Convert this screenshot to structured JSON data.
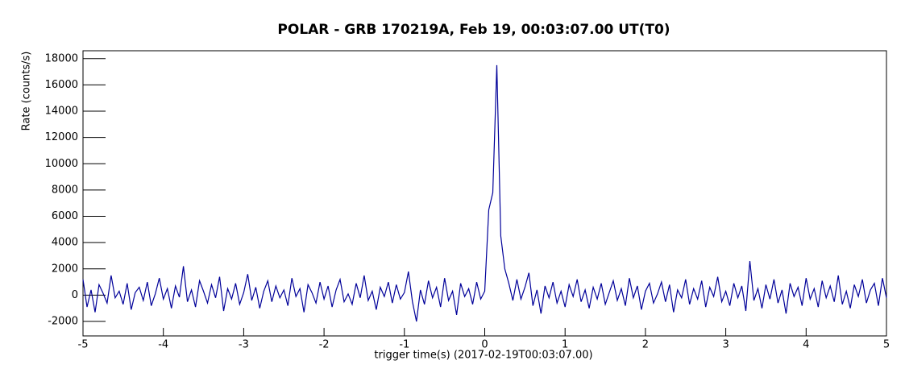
{
  "chart_data": {
    "type": "line",
    "title": "POLAR - GRB 170219A, Feb 19, 00:03:07.00  UT(T0)",
    "x_label": "trigger time(s) (2017-02-19T00:03:07.00)",
    "y_label": "Rate (counts/s)",
    "xlim": [
      -5,
      5
    ],
    "xticks": [
      -5,
      -4,
      -3,
      -2,
      -1,
      0,
      1,
      2,
      3,
      4,
      5
    ],
    "ylim": [
      -3100,
      18600
    ],
    "yticks": [
      -2000,
      0,
      2000,
      4000,
      6000,
      8000,
      10000,
      12000,
      14000,
      16000,
      18000
    ],
    "series": [
      {
        "color": "#000099",
        "x": [
          -5,
          -4.95,
          -4.9,
          -4.85,
          -4.8,
          -4.75,
          -4.7,
          -4.65,
          -4.6,
          -4.55,
          -4.5,
          -4.45,
          -4.4,
          -4.35,
          -4.3,
          -4.25,
          -4.2,
          -4.15,
          -4.1,
          -4.05,
          -4,
          -3.95,
          -3.9,
          -3.85,
          -3.8,
          -3.75,
          -3.7,
          -3.65,
          -3.6,
          -3.55,
          -3.5,
          -3.45,
          -3.4,
          -3.35,
          -3.3,
          -3.25,
          -3.2,
          -3.15,
          -3.1,
          -3.05,
          -3,
          -2.95,
          -2.9,
          -2.85,
          -2.8,
          -2.75,
          -2.7,
          -2.65,
          -2.6,
          -2.55,
          -2.5,
          -2.45,
          -2.4,
          -2.35,
          -2.3,
          -2.25,
          -2.2,
          -2.15,
          -2.1,
          -2.05,
          -2,
          -1.95,
          -1.9,
          -1.85,
          -1.8,
          -1.75,
          -1.7,
          -1.65,
          -1.6,
          -1.55,
          -1.5,
          -1.45,
          -1.4,
          -1.35,
          -1.3,
          -1.25,
          -1.2,
          -1.15,
          -1.1,
          -1.05,
          -1,
          -0.95,
          -0.9,
          -0.85,
          -0.8,
          -0.75,
          -0.7,
          -0.65,
          -0.6,
          -0.55,
          -0.5,
          -0.45,
          -0.4,
          -0.35,
          -0.3,
          -0.25,
          -0.2,
          -0.15,
          -0.1,
          -0.05,
          0,
          0.05,
          0.1,
          0.15,
          0.2,
          0.25,
          0.3,
          0.35,
          0.4,
          0.45,
          0.5,
          0.55,
          0.6,
          0.65,
          0.7,
          0.75,
          0.8,
          0.85,
          0.9,
          0.95,
          1,
          1.05,
          1.1,
          1.15,
          1.2,
          1.25,
          1.3,
          1.35,
          1.4,
          1.45,
          1.5,
          1.55,
          1.6,
          1.65,
          1.7,
          1.75,
          1.8,
          1.85,
          1.9,
          1.95,
          2,
          2.05,
          2.1,
          2.15,
          2.2,
          2.25,
          2.3,
          2.35,
          2.4,
          2.45,
          2.5,
          2.55,
          2.6,
          2.65,
          2.7,
          2.75,
          2.8,
          2.85,
          2.9,
          2.95,
          3,
          3.05,
          3.1,
          3.15,
          3.2,
          3.25,
          3.3,
          3.35,
          3.4,
          3.45,
          3.5,
          3.55,
          3.6,
          3.65,
          3.7,
          3.75,
          3.8,
          3.85,
          3.9,
          3.95,
          4,
          4.05,
          4.1,
          4.15,
          4.2,
          4.25,
          4.3,
          4.35,
          4.4,
          4.45,
          4.5,
          4.55,
          4.6,
          4.65,
          4.7,
          4.75,
          4.8,
          4.85,
          4.9,
          4.95,
          5
        ],
        "values": [
          1200,
          -900,
          400,
          -1300,
          800,
          150,
          -600,
          1500,
          -200,
          300,
          -700,
          900,
          -1100,
          200,
          600,
          -400,
          1000,
          -800,
          100,
          1300,
          -300,
          500,
          -1000,
          700,
          -150,
          2200,
          -500,
          400,
          -900,
          1100,
          300,
          -600,
          800,
          -200,
          1400,
          -1200,
          500,
          -300,
          900,
          -700,
          200,
          1600,
          -400,
          600,
          -1000,
          300,
          1100,
          -500,
          700,
          -200,
          400,
          -800,
          1300,
          -100,
          500,
          -1300,
          800,
          200,
          -600,
          1000,
          -300,
          700,
          -900,
          400,
          1200,
          -500,
          100,
          -700,
          900,
          -200,
          1500,
          -400,
          300,
          -1100,
          600,
          -100,
          1000,
          -600,
          800,
          -300,
          200,
          1800,
          -500,
          -2000,
          400,
          -700,
          1100,
          -200,
          600,
          -900,
          1300,
          -400,
          300,
          -1500,
          900,
          -100,
          500,
          -700,
          1000,
          -300,
          300,
          6500,
          7800,
          17500,
          4500,
          2000,
          900,
          -400,
          1200,
          -300,
          600,
          1700,
          -800,
          400,
          -1400,
          700,
          -200,
          1000,
          -600,
          300,
          -900,
          800,
          -100,
          1200,
          -500,
          400,
          -1000,
          600,
          -300,
          900,
          -700,
          200,
          1100,
          -400,
          500,
          -800,
          1300,
          -200,
          700,
          -1100,
          300,
          900,
          -600,
          100,
          1000,
          -500,
          800,
          -1300,
          400,
          -200,
          1200,
          -700,
          500,
          -300,
          1100,
          -900,
          600,
          -100,
          1400,
          -500,
          300,
          -800,
          900,
          -200,
          700,
          -1200,
          2600,
          -400,
          500,
          -1000,
          800,
          -300,
          1200,
          -600,
          400,
          -1400,
          900,
          -100,
          600,
          -800,
          1300,
          -300,
          500,
          -900,
          1100,
          -200,
          700,
          -500,
          1500,
          -700,
          300,
          -1000,
          800,
          -100,
          1200,
          -600,
          400,
          900,
          -800,
          1300,
          -200
        ]
      }
    ]
  }
}
